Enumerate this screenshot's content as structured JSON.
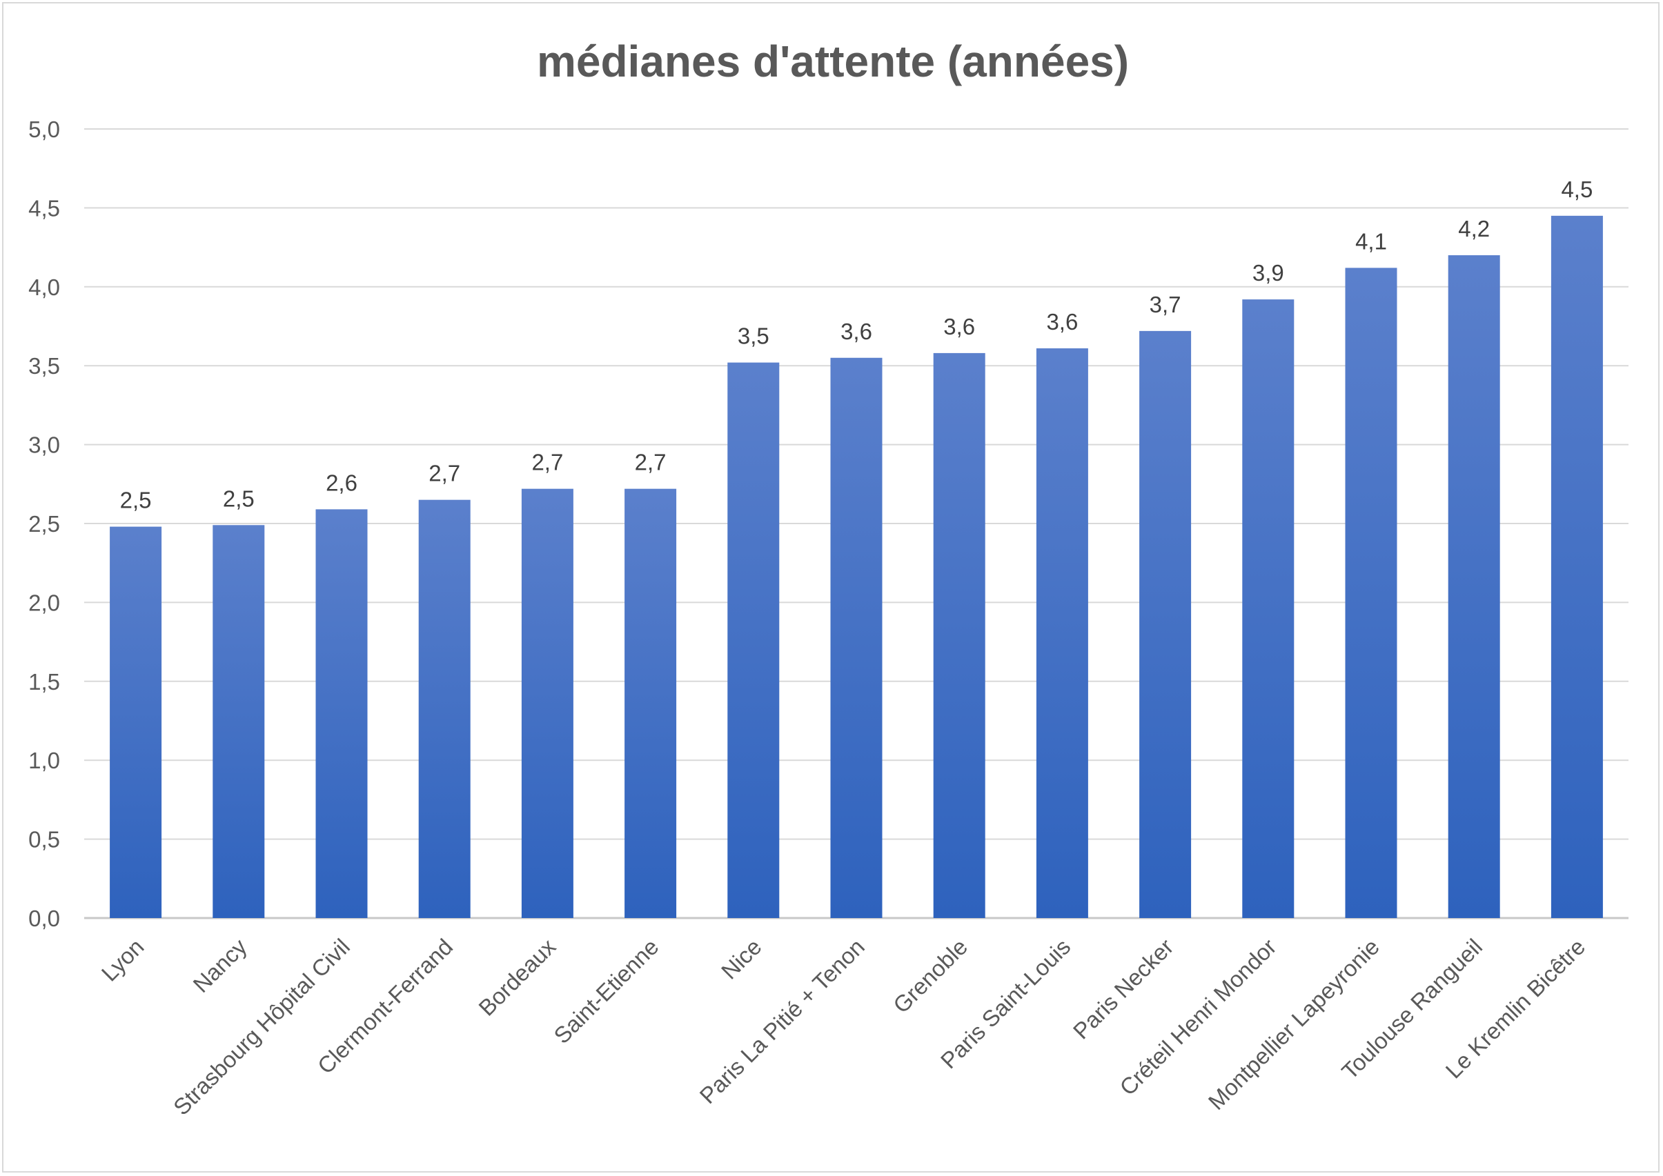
{
  "chart_data": {
    "type": "bar",
    "title": "médianes d'attente (années)",
    "xlabel": "",
    "ylabel": "",
    "ylim": [
      0,
      5
    ],
    "yticks": [
      "0,0",
      "0,5",
      "1,0",
      "1,5",
      "2,0",
      "2,5",
      "3,0",
      "3,5",
      "4,0",
      "4,5",
      "5,0"
    ],
    "grid": true,
    "legend": "none",
    "bar_color_top": "#5b80cc",
    "bar_color_bottom": "#2e62bd",
    "categories": [
      "Lyon",
      "Nancy",
      "Strasbourg Hôpital Civil",
      "Clermont-Ferrand",
      "Bordeaux",
      "Saint-Etienne",
      "Nice",
      "Paris La Pitié + Tenon",
      "Grenoble",
      "Paris Saint-Louis",
      "Paris Necker",
      "Créteil Henri Mondor",
      "Montpellier Lapeyronie",
      "Toulouse Rangueil",
      "Le Kremlin Bicêtre"
    ],
    "values": [
      2.48,
      2.49,
      2.59,
      2.65,
      2.72,
      2.72,
      3.52,
      3.55,
      3.58,
      3.61,
      3.72,
      3.92,
      4.12,
      4.2,
      4.45
    ],
    "data_labels": [
      "2,5",
      "2,5",
      "2,6",
      "2,7",
      "2,7",
      "2,7",
      "3,5",
      "3,6",
      "3,6",
      "3,6",
      "3,7",
      "3,9",
      "4,1",
      "4,2",
      "4,5"
    ]
  }
}
